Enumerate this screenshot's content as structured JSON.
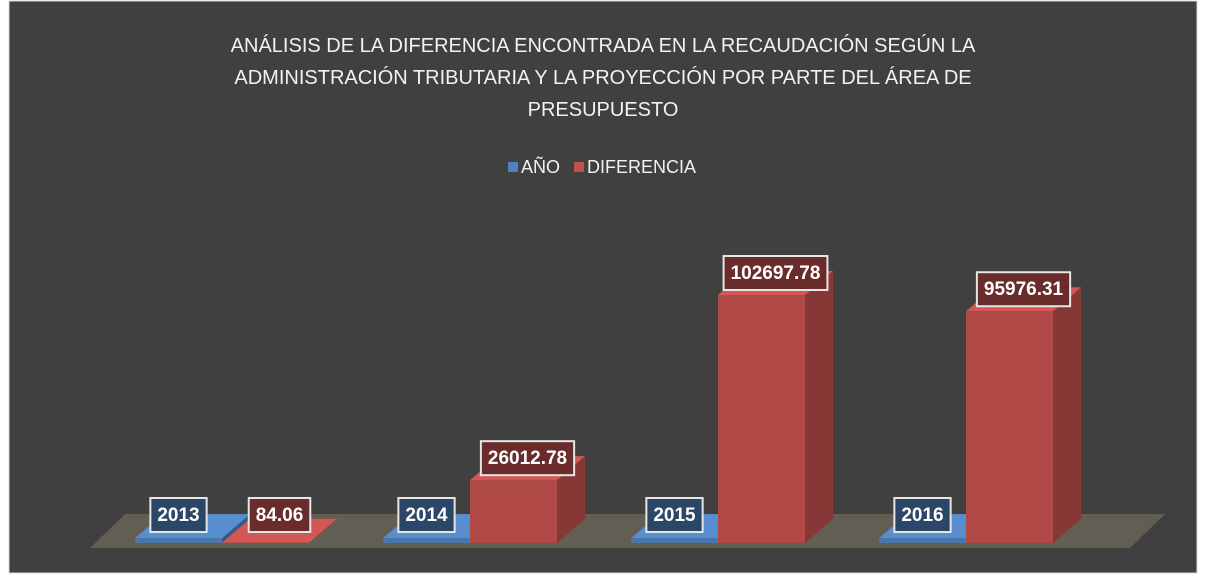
{
  "chart_data": {
    "type": "bar3d",
    "title": "ANÁLISIS DE LA DIFERENCIA ENCONTRADA EN LA RECAUDACIÓN SEGÚN LA ADMINISTRACIÓN TRIBUTARIA Y LA PROYECCIÓN POR PARTE DEL ÁREA DE PRESUPUESTO",
    "series": [
      {
        "name": "AÑO",
        "color": "#4f81bd",
        "values": [
          2013,
          2014,
          2015,
          2016
        ]
      },
      {
        "name": "DIFERENCIA",
        "color": "#c0504d",
        "values": [
          84.06,
          26012.78,
          102697.78,
          95976.31
        ]
      }
    ],
    "legend": "top"
  }
}
